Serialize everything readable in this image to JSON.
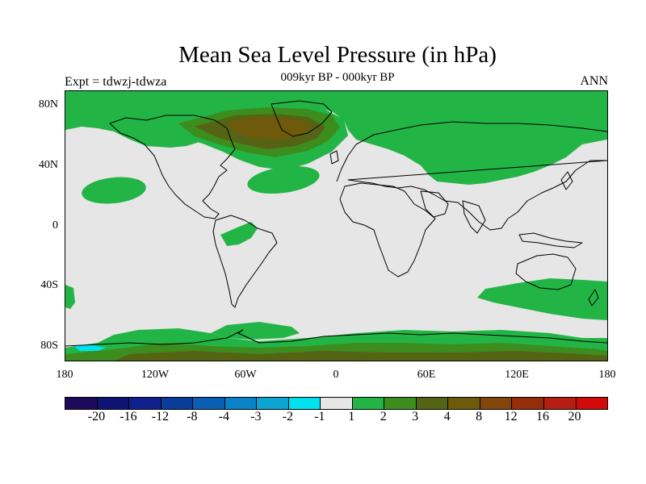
{
  "title": "Mean Sea Level Pressure (in hPa)",
  "subtitle": "009kyr BP - 000kyr BP",
  "left_label": "Expt = tdwzj-tdwza",
  "right_label": "ANN",
  "lat_labels": [
    "80N",
    "40N",
    "0",
    "40S",
    "80S"
  ],
  "lon_labels": [
    "180",
    "120W",
    "60W",
    "0",
    "60E",
    "120E",
    "180"
  ],
  "colorbar": {
    "labels": [
      "-20",
      "-16",
      "-12",
      "-8",
      "-4",
      "-3",
      "-2",
      "-1",
      "1",
      "2",
      "3",
      "4",
      "8",
      "12",
      "16",
      "20"
    ],
    "colors": [
      "#1e0a5a",
      "#0f1473",
      "#10218e",
      "#0a3c9c",
      "#0a5fb4",
      "#0a82c8",
      "#0aa5d2",
      "#00e1f0",
      "#e6e6e6",
      "#23b446",
      "#3c8c1e",
      "#556414",
      "#6e5a0a",
      "#82460a",
      "#962d0a",
      "#b41e14",
      "#d20a0a"
    ]
  },
  "colors": {
    "background": "#e6e6e6",
    "green_1_2": "#23b446",
    "olive_2_3": "#3c8c1e",
    "olive_3_4": "#556414",
    "brown_4_8": "#6e5a0a",
    "cyan_neg": "#00e1f0",
    "coast": "#000000"
  }
}
